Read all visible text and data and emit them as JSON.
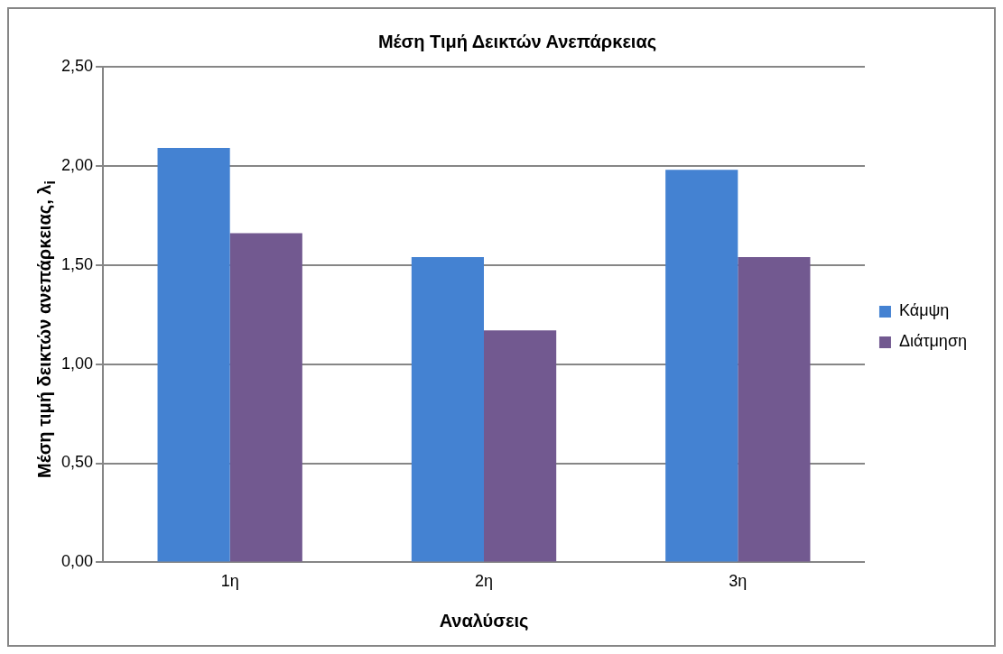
{
  "chart_data": {
    "type": "bar",
    "title": "Μέση Τιμή Δεικτών Ανεπάρκειας",
    "xlabel": "Αναλύσεις",
    "ylabel": "Μέση τιμή δεικτών ανεπάρκειας, λ$_{i}$",
    "categories": [
      "1η",
      "2η",
      "3η"
    ],
    "series": [
      {
        "name": "Κάμψη",
        "color": "#4482d2",
        "values": [
          2.09,
          1.54,
          1.98
        ]
      },
      {
        "name": "Διάτμηση",
        "color": "#725990",
        "values": [
          1.66,
          1.17,
          1.54
        ]
      }
    ],
    "ylim": [
      0,
      2.5
    ],
    "yticks": [
      {
        "value": 0,
        "label": "0,00"
      },
      {
        "value": 0.5,
        "label": "0,50"
      },
      {
        "value": 1,
        "label": "1,00"
      },
      {
        "value": 1.5,
        "label": "1,50"
      },
      {
        "value": 2,
        "label": "2,00"
      },
      {
        "value": 2.5,
        "label": "2,50"
      }
    ],
    "grid": "y",
    "legend": "right"
  }
}
